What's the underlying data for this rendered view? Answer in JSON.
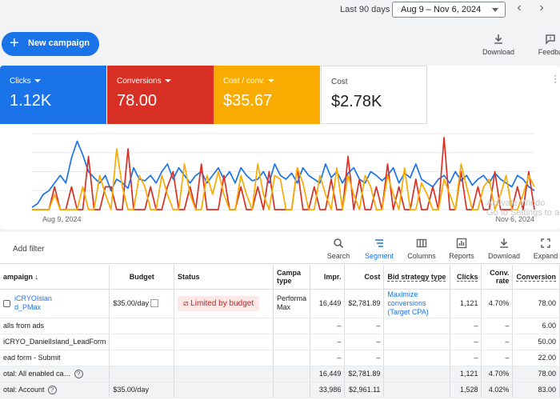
{
  "header": {
    "range_label": "Last 90 days",
    "date_range": "Aug 9 – Nov 6, 2024",
    "prev_icon": "chevron-left-icon",
    "next_icon": "chevron-right-icon"
  },
  "new_campaign": {
    "label": "New campaign",
    "icon": "plus-icon"
  },
  "top_actions": [
    {
      "label": "Download",
      "icon": "download-icon"
    },
    {
      "label": "Feedba",
      "icon": "feedback-icon"
    }
  ],
  "metrics": [
    {
      "label": "Clicks",
      "value": "1.12K",
      "color": "#1a73e8"
    },
    {
      "label": "Conversions",
      "value": "78.00",
      "color": "#d93025"
    },
    {
      "label": "Cost / conv.",
      "value": "$35.67",
      "color": "#f9ab00"
    },
    {
      "label": "Cost",
      "value": "$2.78K",
      "color": "#ffffff"
    }
  ],
  "watermark": {
    "line1": "Activate Windo",
    "line2": "Go to Settings to ac"
  },
  "chart_data": {
    "type": "line",
    "x_start_label": "Aug 9, 2024",
    "x_end_label": "Nov 6, 2024",
    "ylim": [
      0,
      1
    ],
    "grid": true,
    "series": [
      {
        "color": "#1a73e8",
        "values": [
          0.03,
          0.08,
          0.2,
          0.25,
          0.35,
          0.45,
          0.35,
          0.68,
          0.9,
          0.72,
          0.5,
          0.42,
          0.35,
          0.45,
          0.25,
          0.4,
          0.35,
          0.28,
          0.55,
          0.4,
          0.38,
          0.45,
          0.35,
          0.5,
          0.6,
          0.4,
          0.55,
          0.45,
          0.35,
          0.45,
          0.5,
          0.35,
          0.45,
          0.55,
          0.4,
          0.5,
          0.35,
          0.55,
          0.45,
          0.38,
          0.4,
          0.5,
          0.35,
          0.6,
          0.45,
          0.4,
          0.48,
          0.35,
          0.55,
          0.45,
          0.4,
          0.35,
          0.6,
          0.42,
          0.5,
          0.35,
          0.48,
          0.55,
          0.4,
          0.35,
          0.5,
          0.45,
          0.38,
          0.45,
          0.55,
          0.35,
          0.48,
          0.42,
          0.6,
          0.4,
          0.35,
          0.3,
          0.4,
          0.45,
          0.35,
          0.5,
          0.38,
          0.45,
          0.32,
          0.4,
          0.45,
          0.35,
          0.48,
          0.4,
          0.35,
          0.3,
          0.45,
          0.4,
          0.3,
          0.25
        ]
      },
      {
        "color": "#d93025",
        "values": [
          0,
          0,
          0,
          0,
          0.3,
          0,
          0,
          0.3,
          0,
          0,
          0.7,
          0,
          0,
          0.3,
          0.3,
          0,
          0,
          0.8,
          0,
          0,
          0,
          0.3,
          0,
          0,
          0.3,
          0.5,
          0,
          0,
          0.3,
          0,
          0.6,
          0,
          0,
          0,
          0.45,
          0,
          0,
          0.3,
          0,
          0,
          0.3,
          0,
          0.5,
          0,
          0,
          0,
          0,
          0.55,
          0,
          0,
          0.3,
          0,
          0,
          0.4,
          0,
          0,
          0.7,
          0,
          0.4,
          0,
          0,
          0.3,
          0,
          0.6,
          0,
          0.3,
          0,
          0,
          0.4,
          0,
          0,
          0.3,
          0,
          0.95,
          0,
          0,
          0.5,
          0,
          0,
          0.3,
          0,
          0,
          0.5,
          0,
          0,
          0,
          0.3,
          0,
          0.5,
          0
        ]
      },
      {
        "color": "#f9ab00",
        "values": [
          0,
          0,
          0,
          0,
          0.2,
          0,
          0,
          0,
          0,
          0.3,
          0,
          0,
          0.45,
          0.2,
          0,
          0.8,
          0.3,
          0,
          0,
          0.45,
          0.3,
          0,
          0,
          0.45,
          0.2,
          0,
          0,
          0.6,
          0.2,
          0,
          0,
          0.45,
          0.2,
          0.5,
          0.2,
          0,
          0,
          0.45,
          0.2,
          0,
          0.6,
          0.2,
          0,
          0.45,
          0.4,
          0,
          0,
          0.55,
          0.35,
          0,
          0,
          0.45,
          0.2,
          0,
          0.55,
          0,
          0.45,
          0.2,
          0,
          0.45,
          0.3,
          0,
          0,
          0.45,
          0.2,
          0,
          0.55,
          0,
          0,
          0.35,
          0.2,
          0,
          0,
          0.4,
          0.2,
          0,
          0.6,
          0.3,
          0,
          0,
          0.3,
          0.4,
          0,
          0.2,
          0.45,
          0,
          0,
          0.2,
          0.45,
          0.3
        ]
      }
    ]
  },
  "toolbar": {
    "add_filter": "Add filter",
    "tools": [
      {
        "label": "Search",
        "icon": "search-icon"
      },
      {
        "label": "Segment",
        "icon": "segment-icon",
        "active": true
      },
      {
        "label": "Columns",
        "icon": "columns-icon"
      },
      {
        "label": "Reports",
        "icon": "reports-icon"
      },
      {
        "label": "Download",
        "icon": "download-icon"
      },
      {
        "label": "Expand",
        "icon": "expand-icon"
      }
    ]
  },
  "table": {
    "headers": {
      "campaign": "ampaign",
      "budget": "Budget",
      "status": "Status",
      "campaign_type": "Campa type",
      "impr": "Impr.",
      "cost": "Cost",
      "bid": "Bid strategy type",
      "clicks": "Clicks",
      "conv_rate": "Conv. rate",
      "conversions": "Conversion"
    },
    "main_row": {
      "campaign": "iCRYOIslan d_PMax",
      "budget": "$35.00/day",
      "status": "Limited by budget",
      "campaign_type": "Performa Max",
      "impr": "16,449",
      "cost": "$2,781.89",
      "bid": "Maximize conversions (Target CPA)",
      "clicks": "1,121",
      "conv_rate": "4.70%",
      "conversions": "78.00"
    },
    "sub_rows": [
      {
        "campaign": "alls from ads",
        "impr": "–",
        "cost": "–",
        "clicks": "–",
        "conv_rate": "–",
        "conversions": "6.00"
      },
      {
        "campaign": "iCRYO_DanielIsland_LeadForm",
        "impr": "–",
        "cost": "–",
        "clicks": "–",
        "conv_rate": "–",
        "conversions": "50.00"
      },
      {
        "campaign": "ead form - Submit",
        "impr": "–",
        "cost": "–",
        "clicks": "–",
        "conv_rate": "–",
        "conversions": "22.00"
      }
    ],
    "total_enabled": {
      "campaign": "otal: All enabled ca…",
      "impr": "16,449",
      "cost": "$2,781.89",
      "clicks": "1,121",
      "conv_rate": "4.70%",
      "conversions": "78.00"
    },
    "total_account": {
      "campaign": "otal: Account",
      "budget": "$35.00/day",
      "impr": "33,986",
      "cost": "$2,961.11",
      "clicks": "1,528",
      "conv_rate": "4.02%",
      "conversions": "83.00"
    }
  }
}
